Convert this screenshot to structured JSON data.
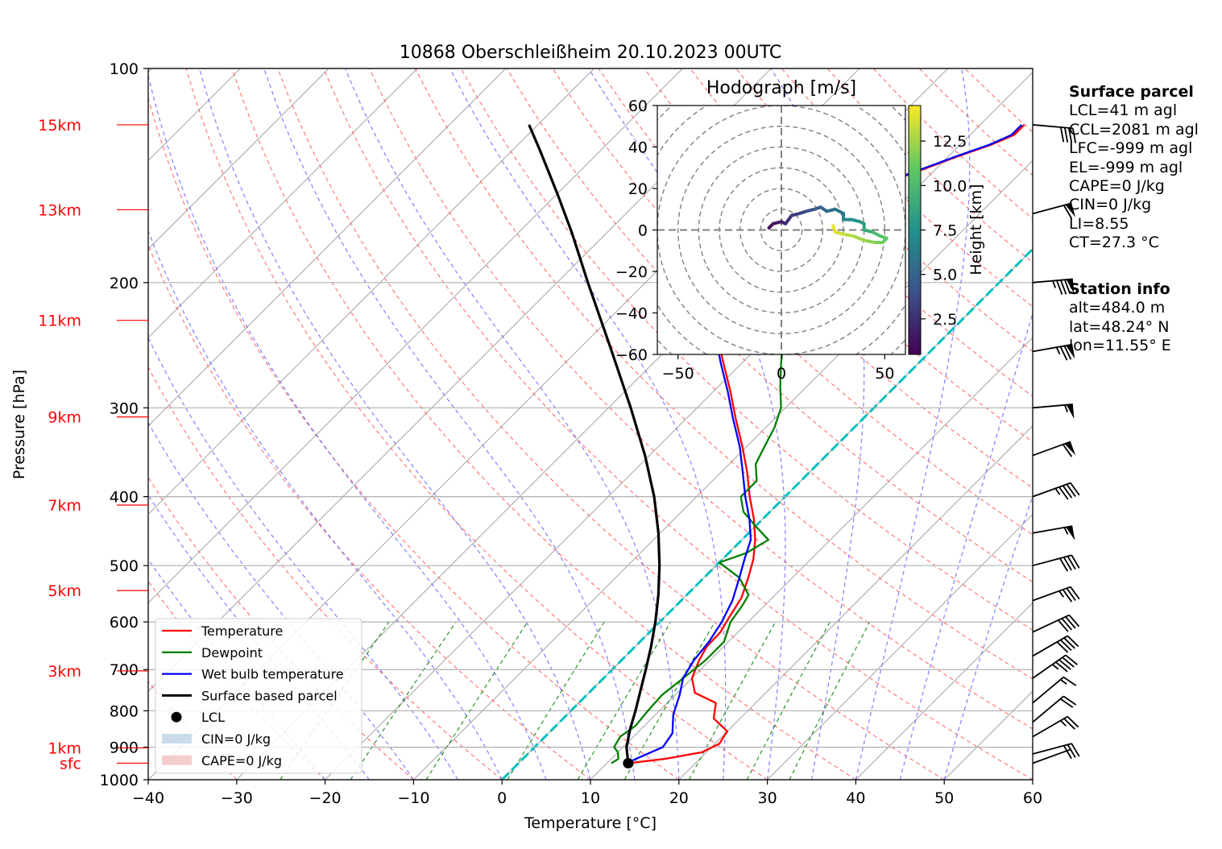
{
  "chart_data": [
    {
      "type": "skew-t",
      "title": "10868 Oberschleißheim 20.10.2023 00UTC",
      "xlabel": "Temperature [°C]",
      "ylabel": "Pressure [hPa]",
      "xlim": [
        -40,
        60
      ],
      "ylim": [
        1000,
        100
      ],
      "y_scale": "log",
      "x_ticks": [
        -40,
        -30,
        -20,
        -10,
        0,
        10,
        20,
        30,
        40,
        50,
        60
      ],
      "y_ticks": [
        100,
        200,
        300,
        400,
        500,
        600,
        700,
        800,
        900,
        1000
      ],
      "height_labels": [
        {
          "label": "15km",
          "p": 120
        },
        {
          "label": "13km",
          "p": 158
        },
        {
          "label": "11km",
          "p": 226
        },
        {
          "label": "9km",
          "p": 309
        },
        {
          "label": "7km",
          "p": 411
        },
        {
          "label": "5km",
          "p": 542
        },
        {
          "label": "3km",
          "p": 703
        },
        {
          "label": "1km",
          "p": 902
        },
        {
          "label": "sfc",
          "p": 948
        }
      ],
      "series": [
        {
          "name": "Temperature",
          "color": "#ff0000",
          "points": [
            [
              948,
              12.4
            ],
            [
              935,
              16
            ],
            [
              915,
              19.5
            ],
            [
              890,
              20.5
            ],
            [
              870,
              20.2
            ],
            [
              855,
              20
            ],
            [
              820,
              17
            ],
            [
              780,
              15.5
            ],
            [
              755,
              12
            ],
            [
              720,
              10
            ],
            [
              680,
              8.8
            ],
            [
              650,
              8.1
            ],
            [
              620,
              8
            ],
            [
              590,
              7.3
            ],
            [
              555,
              6.5
            ],
            [
              520,
              5
            ],
            [
              490,
              3.5
            ],
            [
              460,
              1.5
            ],
            [
              430,
              -1
            ],
            [
              400,
              -4
            ],
            [
              370,
              -7
            ],
            [
              340,
              -10.5
            ],
            [
              310,
              -14.5
            ],
            [
              285,
              -18
            ],
            [
              260,
              -22
            ],
            [
              238,
              -25.8
            ],
            [
              215,
              -30
            ],
            [
              198,
              -33.5
            ],
            [
              185,
              -34.8
            ],
            [
              176,
              -34
            ],
            [
              172,
              -31.5
            ],
            [
              165,
              -30
            ],
            [
              155,
              -28
            ],
            [
              148,
              -25.5
            ],
            [
              140,
              -22
            ],
            [
              133,
              -19
            ],
            [
              128,
              -16.5
            ],
            [
              124,
              -15
            ],
            [
              120,
              -15
            ]
          ]
        },
        {
          "name": "Dewpoint",
          "color": "#008000",
          "points": [
            [
              948,
              10.5
            ],
            [
              935,
              10.8
            ],
            [
              915,
              10
            ],
            [
              900,
              9
            ],
            [
              870,
              8.5
            ],
            [
              840,
              9
            ],
            [
              800,
              8.7
            ],
            [
              760,
              8.5
            ],
            [
              720,
              9
            ],
            [
              680,
              9.5
            ],
            [
              640,
              9.5
            ],
            [
              600,
              8
            ],
            [
              570,
              7.5
            ],
            [
              550,
              7
            ],
            [
              520,
              4
            ],
            [
              495,
              0
            ],
            [
              480,
              2
            ],
            [
              460,
              3
            ],
            [
              440,
              0
            ],
            [
              420,
              -3
            ],
            [
              400,
              -5
            ],
            [
              380,
              -5
            ],
            [
              360,
              -7
            ],
            [
              340,
              -8
            ],
            [
              320,
              -9
            ],
            [
              300,
              -10.5
            ],
            [
              280,
              -13
            ],
            [
              260,
              -15.5
            ],
            [
              240,
              -18
            ],
            [
              222,
              -21.5
            ],
            [
              205,
              -24.5
            ],
            [
              193,
              -25
            ],
            [
              188,
              -22
            ],
            [
              183,
              -38.5
            ],
            [
              178,
              -33
            ],
            [
              172,
              -35
            ],
            [
              160,
              -37.5
            ],
            [
              150,
              -38.5
            ],
            [
              140,
              -39
            ],
            [
              130,
              -40
            ],
            [
              125,
              -40.5
            ],
            [
              120,
              -42
            ]
          ]
        },
        {
          "name": "Wet bulb temperature",
          "color": "#0000ff",
          "points": [
            [
              948,
              12.2
            ],
            [
              930,
              13
            ],
            [
              900,
              14.5
            ],
            [
              860,
              14
            ],
            [
              810,
              12
            ],
            [
              760,
              10.5
            ],
            [
              720,
              9
            ],
            [
              680,
              8.2
            ],
            [
              640,
              7.8
            ],
            [
              600,
              7
            ],
            [
              560,
              5.8
            ],
            [
              520,
              4
            ],
            [
              490,
              2.5
            ],
            [
              460,
              1
            ],
            [
              430,
              -1.5
            ],
            [
              400,
              -4.5
            ],
            [
              370,
              -7.5
            ],
            [
              340,
              -10.8
            ],
            [
              310,
              -14.8
            ],
            [
              285,
              -18.3
            ],
            [
              260,
              -22.3
            ],
            [
              238,
              -26
            ],
            [
              215,
              -30.3
            ],
            [
              198,
              -33.7
            ],
            [
              185,
              -35
            ],
            [
              176,
              -34.2
            ],
            [
              172,
              -31.7
            ],
            [
              165,
              -30.2
            ],
            [
              155,
              -28.2
            ],
            [
              148,
              -25.7
            ],
            [
              140,
              -22.2
            ],
            [
              133,
              -19.2
            ],
            [
              128,
              -16.7
            ],
            [
              124,
              -15.3
            ],
            [
              120,
              -15.3
            ]
          ]
        },
        {
          "name": "Surface based parcel",
          "color": "#000000",
          "points": [
            [
              948,
              12.4
            ],
            [
              900,
              10.4
            ],
            [
              850,
              8.8
            ],
            [
              800,
              7.3
            ],
            [
              750,
              5.6
            ],
            [
              700,
              3.8
            ],
            [
              650,
              1.8
            ],
            [
              600,
              -0.5
            ],
            [
              550,
              -3.2
            ],
            [
              500,
              -6.4
            ],
            [
              450,
              -10.2
            ],
            [
              400,
              -14.8
            ],
            [
              350,
              -20.5
            ],
            [
              300,
              -27.5
            ],
            [
              250,
              -36
            ],
            [
              200,
              -46.5
            ],
            [
              170,
              -54
            ],
            [
              150,
              -60
            ],
            [
              130,
              -67
            ],
            [
              120,
              -71
            ]
          ]
        }
      ],
      "lcl": {
        "p": 948,
        "t": 12.4
      },
      "legend": {
        "position": "lower-left",
        "entries": [
          {
            "label": "Temperature",
            "kind": "line",
            "color": "#ff0000"
          },
          {
            "label": "Dewpoint",
            "kind": "line",
            "color": "#008000"
          },
          {
            "label": "Wet bulb temperature",
            "kind": "line",
            "color": "#0000ff"
          },
          {
            "label": "Surface based parcel",
            "kind": "line",
            "color": "#000000"
          },
          {
            "label": "LCL",
            "kind": "dot",
            "color": "#000000"
          },
          {
            "label": "CIN=0 J/kg",
            "kind": "patch",
            "color": "#c8dcea"
          },
          {
            "label": "CAPE=0 J/kg",
            "kind": "patch",
            "color": "#f5cccc"
          }
        ]
      },
      "wind_barbs": [
        {
          "p": 948,
          "spd_kt": 4,
          "dir": 250
        },
        {
          "p": 920,
          "spd_kt": 30,
          "dir": 255
        },
        {
          "p": 870,
          "spd_kt": 25,
          "dir": 240
        },
        {
          "p": 830,
          "spd_kt": 20,
          "dir": 230
        },
        {
          "p": 780,
          "spd_kt": 15,
          "dir": 230
        },
        {
          "p": 720,
          "spd_kt": 45,
          "dir": 235
        },
        {
          "p": 670,
          "spd_kt": 40,
          "dir": 240
        },
        {
          "p": 620,
          "spd_kt": 40,
          "dir": 245
        },
        {
          "p": 560,
          "spd_kt": 35,
          "dir": 250
        },
        {
          "p": 500,
          "spd_kt": 40,
          "dir": 255
        },
        {
          "p": 450,
          "spd_kt": 55,
          "dir": 260
        },
        {
          "p": 400,
          "spd_kt": 45,
          "dir": 250
        },
        {
          "p": 350,
          "spd_kt": 60,
          "dir": 250
        },
        {
          "p": 300,
          "spd_kt": 55,
          "dir": 265
        },
        {
          "p": 250,
          "spd_kt": 75,
          "dir": 260
        },
        {
          "p": 200,
          "spd_kt": 85,
          "dir": 265
        },
        {
          "p": 160,
          "spd_kt": 60,
          "dir": 255
        },
        {
          "p": 120,
          "spd_kt": 40,
          "dir": 275
        }
      ],
      "reference_lines": {
        "dry_adiabats": true,
        "moist_adiabats": true,
        "mixing_ratio": true,
        "isotherms": true,
        "zero_isotherm": "#00c0c0"
      }
    },
    {
      "type": "hodograph",
      "title": "Hodograph [m/s]",
      "xlim": [
        -60,
        60
      ],
      "ylim": [
        -60,
        60
      ],
      "x_ticks": [
        -50,
        0,
        50
      ],
      "y_ticks": [
        -60,
        -40,
        -20,
        0,
        20,
        40,
        60
      ],
      "ring_spacing": 10,
      "colorbar": {
        "label": "Height [km]",
        "ticks": [
          2.5,
          5.0,
          7.5,
          10.0,
          12.5
        ],
        "range": [
          0.5,
          14.5
        ],
        "colormap": "viridis"
      },
      "points": [
        {
          "u": -6,
          "v": 1,
          "h": 0.5
        },
        {
          "u": -4,
          "v": 3,
          "h": 1
        },
        {
          "u": 0,
          "v": 4,
          "h": 1.5
        },
        {
          "u": 2,
          "v": 3,
          "h": 1.8
        },
        {
          "u": 5,
          "v": 7,
          "h": 2.5
        },
        {
          "u": 9,
          "v": 8,
          "h": 3
        },
        {
          "u": 12,
          "v": 9,
          "h": 3.5
        },
        {
          "u": 16,
          "v": 10,
          "h": 4
        },
        {
          "u": 19,
          "v": 11,
          "h": 4.5
        },
        {
          "u": 22,
          "v": 9,
          "h": 5
        },
        {
          "u": 26,
          "v": 10,
          "h": 5.5
        },
        {
          "u": 30,
          "v": 8,
          "h": 6
        },
        {
          "u": 30,
          "v": 5,
          "h": 6.5
        },
        {
          "u": 34,
          "v": 5,
          "h": 7
        },
        {
          "u": 38,
          "v": 4,
          "h": 7.5
        },
        {
          "u": 40,
          "v": 3,
          "h": 8
        },
        {
          "u": 40,
          "v": 0,
          "h": 8.5
        },
        {
          "u": 44,
          "v": -1,
          "h": 9
        },
        {
          "u": 48,
          "v": -3,
          "h": 10
        },
        {
          "u": 51,
          "v": -4,
          "h": 10.5
        },
        {
          "u": 49,
          "v": -6,
          "h": 11
        },
        {
          "u": 45,
          "v": -6,
          "h": 11.5
        },
        {
          "u": 40,
          "v": -5,
          "h": 12
        },
        {
          "u": 35,
          "v": -3,
          "h": 12.5
        },
        {
          "u": 30,
          "v": -2,
          "h": 13
        },
        {
          "u": 26,
          "v": -1,
          "h": 13.5
        },
        {
          "u": 25,
          "v": 2,
          "h": 14
        }
      ]
    }
  ],
  "surface_parcel": {
    "title": "Surface parcel",
    "lines": [
      "LCL=41 m agl",
      "CCL=2081 m agl",
      "LFC=-999 m agl",
      "EL=-999 m agl",
      "CAPE=0 J/kg",
      "CIN=0 J/kg",
      "LI=8.55",
      "CT=27.3 °C"
    ]
  },
  "station_info": {
    "title": "Station info",
    "lines": [
      "alt=484.0 m",
      "lat=48.24° N",
      "lon=11.55° E"
    ]
  }
}
